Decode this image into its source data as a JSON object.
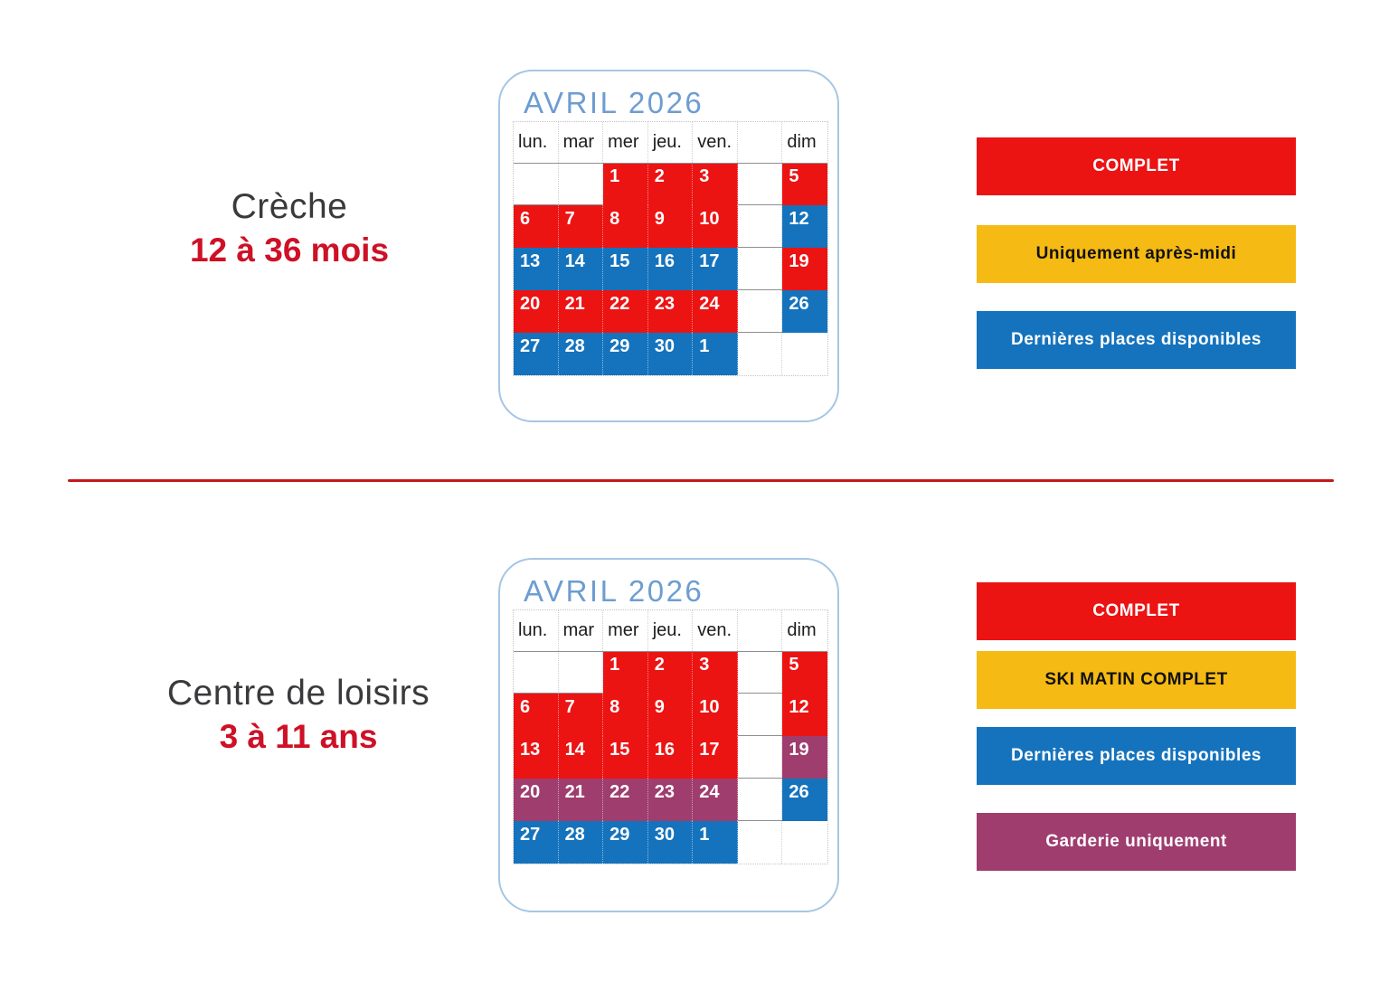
{
  "colors": {
    "status_red": "#EC1313",
    "status_yellow": "#F5BA13",
    "status_blue": "#1573BD",
    "status_purple": "#9E3D6E",
    "month_title_blue": "#6D9DD1",
    "card_border": "#A6C6E4",
    "divider_red": "#C2191C",
    "side_title_dark": "#3A3A3C",
    "side_title_red": "#CE1126"
  },
  "sections": [
    {
      "title_line1": "Crèche",
      "title_line2": "12 à 36 mois",
      "calendar": {
        "month_title": "AVRIL 2026",
        "day_headers": [
          "lun.",
          "mar",
          "mer",
          "jeu.",
          "ven.",
          "",
          "dim"
        ],
        "weeks": [
          [
            {
              "d": "",
              "c": ""
            },
            {
              "d": "",
              "c": ""
            },
            {
              "d": "1",
              "c": "red"
            },
            {
              "d": "2",
              "c": "red"
            },
            {
              "d": "3",
              "c": "red"
            },
            {
              "d": "",
              "c": ""
            },
            {
              "d": "5",
              "c": "red"
            }
          ],
          [
            {
              "d": "6",
              "c": "red"
            },
            {
              "d": "7",
              "c": "red"
            },
            {
              "d": "8",
              "c": "red"
            },
            {
              "d": "9",
              "c": "red"
            },
            {
              "d": "10",
              "c": "red"
            },
            {
              "d": "",
              "c": ""
            },
            {
              "d": "12",
              "c": "blue"
            }
          ],
          [
            {
              "d": "13",
              "c": "blue"
            },
            {
              "d": "14",
              "c": "blue"
            },
            {
              "d": "15",
              "c": "blue"
            },
            {
              "d": "16",
              "c": "blue"
            },
            {
              "d": "17",
              "c": "blue"
            },
            {
              "d": "",
              "c": ""
            },
            {
              "d": "19",
              "c": "red"
            }
          ],
          [
            {
              "d": "20",
              "c": "red"
            },
            {
              "d": "21",
              "c": "red"
            },
            {
              "d": "22",
              "c": "red"
            },
            {
              "d": "23",
              "c": "red"
            },
            {
              "d": "24",
              "c": "red"
            },
            {
              "d": "",
              "c": ""
            },
            {
              "d": "26",
              "c": "blue"
            }
          ],
          [
            {
              "d": "27",
              "c": "blue"
            },
            {
              "d": "28",
              "c": "blue"
            },
            {
              "d": "29",
              "c": "blue"
            },
            {
              "d": "30",
              "c": "blue"
            },
            {
              "d": "1",
              "c": "blue"
            },
            {
              "d": "",
              "c": ""
            },
            {
              "d": "",
              "c": ""
            }
          ]
        ]
      },
      "legend": [
        {
          "label": "COMPLET",
          "color": "red"
        },
        {
          "label": "Uniquement après-midi",
          "color": "yellow"
        },
        {
          "label": "Dernières places disponibles",
          "color": "blue"
        }
      ]
    },
    {
      "title_line1": "Centre de loisirs",
      "title_line2": "3 à 11 ans",
      "calendar": {
        "month_title": "AVRIL 2026",
        "day_headers": [
          "lun.",
          "mar",
          "mer",
          "jeu.",
          "ven.",
          "",
          "dim"
        ],
        "weeks": [
          [
            {
              "d": "",
              "c": ""
            },
            {
              "d": "",
              "c": ""
            },
            {
              "d": "1",
              "c": "red"
            },
            {
              "d": "2",
              "c": "red"
            },
            {
              "d": "3",
              "c": "red"
            },
            {
              "d": "",
              "c": ""
            },
            {
              "d": "5",
              "c": "red"
            }
          ],
          [
            {
              "d": "6",
              "c": "red"
            },
            {
              "d": "7",
              "c": "red"
            },
            {
              "d": "8",
              "c": "red"
            },
            {
              "d": "9",
              "c": "red"
            },
            {
              "d": "10",
              "c": "red"
            },
            {
              "d": "",
              "c": ""
            },
            {
              "d": "12",
              "c": "red"
            }
          ],
          [
            {
              "d": "13",
              "c": "red"
            },
            {
              "d": "14",
              "c": "red"
            },
            {
              "d": "15",
              "c": "red"
            },
            {
              "d": "16",
              "c": "red"
            },
            {
              "d": "17",
              "c": "red"
            },
            {
              "d": "",
              "c": ""
            },
            {
              "d": "19",
              "c": "purple"
            }
          ],
          [
            {
              "d": "20",
              "c": "purple"
            },
            {
              "d": "21",
              "c": "purple"
            },
            {
              "d": "22",
              "c": "purple"
            },
            {
              "d": "23",
              "c": "purple"
            },
            {
              "d": "24",
              "c": "purple"
            },
            {
              "d": "",
              "c": ""
            },
            {
              "d": "26",
              "c": "blue"
            }
          ],
          [
            {
              "d": "27",
              "c": "blue"
            },
            {
              "d": "28",
              "c": "blue"
            },
            {
              "d": "29",
              "c": "blue"
            },
            {
              "d": "30",
              "c": "blue"
            },
            {
              "d": "1",
              "c": "blue"
            },
            {
              "d": "",
              "c": ""
            },
            {
              "d": "",
              "c": ""
            }
          ]
        ]
      },
      "legend": [
        {
          "label": "COMPLET",
          "color": "red"
        },
        {
          "label": "SKI MATIN COMPLET",
          "color": "yellow"
        },
        {
          "label": "Dernières places disponibles",
          "color": "blue"
        },
        {
          "label": "Garderie uniquement",
          "color": "purple"
        }
      ]
    }
  ]
}
